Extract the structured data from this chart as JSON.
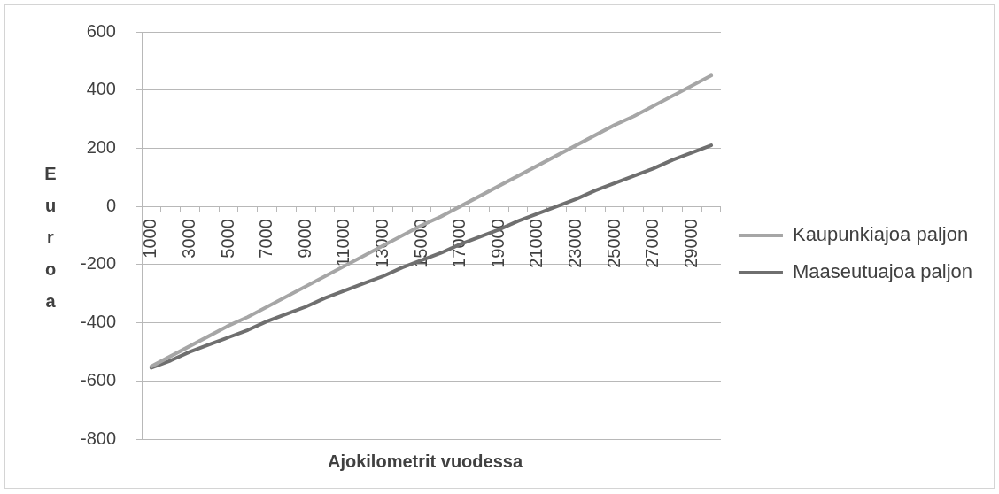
{
  "chart_data": {
    "type": "line",
    "xlabel": "Ajokilometrit vuodessa",
    "ylabel": "Euroa",
    "categories": [
      "1000",
      null,
      "3000",
      null,
      "5000",
      null,
      "7000",
      null,
      "9000",
      null,
      "11000",
      null,
      "13000",
      null,
      "15000",
      null,
      "17000",
      null,
      "19000",
      null,
      "21000",
      null,
      "23000",
      null,
      "25000",
      null,
      "27000",
      null,
      "29000",
      null
    ],
    "series": [
      {
        "name": "Kaupunkiajoa paljon",
        "color": "#a6a6a6",
        "values": [
          -550,
          -515,
          -480,
          -445,
          -410,
          -380,
          -345,
          -310,
          -275,
          -240,
          -205,
          -170,
          -135,
          -100,
          -65,
          -35,
          0,
          35,
          70,
          105,
          140,
          175,
          210,
          245,
          280,
          310,
          345,
          380,
          415,
          450
        ]
      },
      {
        "name": "Maaseutuajoa paljon",
        "color": "#6f6f6f",
        "values": [
          -555,
          -530,
          -500,
          -475,
          -450,
          -425,
          -395,
          -370,
          -345,
          -315,
          -290,
          -265,
          -240,
          -210,
          -185,
          -160,
          -130,
          -105,
          -80,
          -50,
          -25,
          0,
          25,
          55,
          80,
          105,
          130,
          160,
          185,
          210
        ]
      }
    ],
    "ylim": [
      -800,
      600
    ],
    "yticks": [
      -800,
      -600,
      -400,
      -200,
      0,
      200,
      400,
      600
    ],
    "grid": "y",
    "legend": "right",
    "marker": "none",
    "line_style": "solid"
  }
}
